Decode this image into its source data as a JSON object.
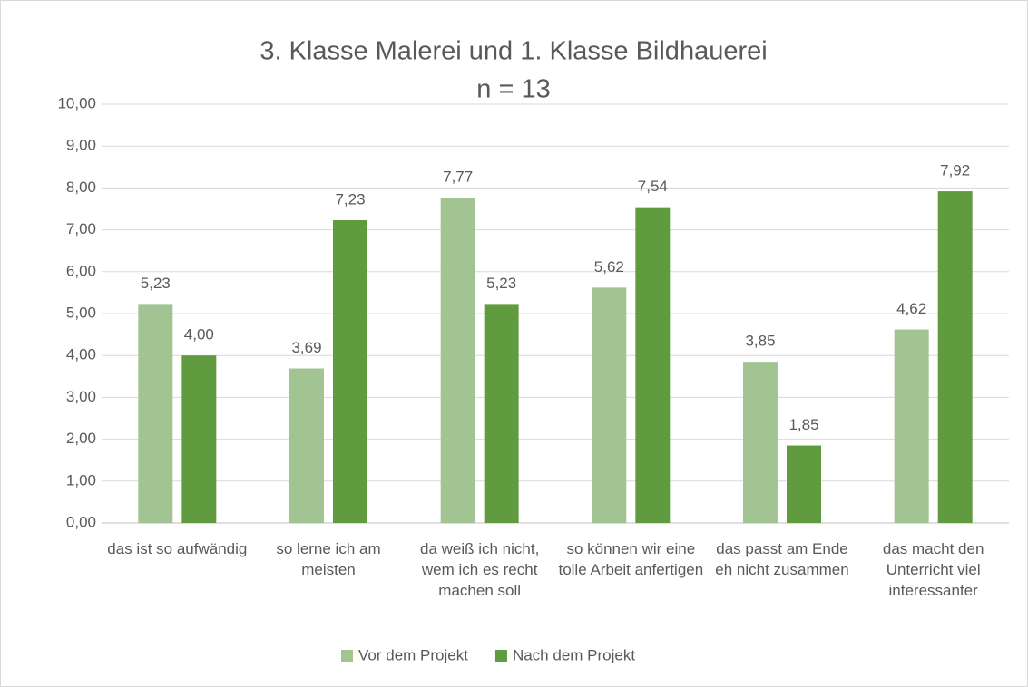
{
  "chart_data": {
    "type": "bar",
    "title": "3. Klasse Malerei und 1. Klasse Bildhauerei",
    "subtitle": "n = 13",
    "categories": [
      "das ist so aufwändig",
      "so lerne ich am meisten",
      "da weiß ich nicht, wem ich es recht machen soll",
      "so können wir eine tolle Arbeit anfertigen",
      "das passt am Ende eh nicht zusammen",
      "das macht den Unterricht viel interessanter"
    ],
    "series": [
      {
        "name": "Vor dem Projekt",
        "color": "#a2c493",
        "values": [
          5.23,
          3.69,
          7.77,
          5.62,
          3.85,
          4.62
        ],
        "value_labels": [
          "5,23",
          "3,69",
          "7,77",
          "5,62",
          "3,85",
          "4,62"
        ]
      },
      {
        "name": "Nach dem Projekt",
        "color": "#619b3f",
        "values": [
          4.0,
          7.23,
          5.23,
          7.54,
          1.85,
          7.92
        ],
        "value_labels": [
          "4,00",
          "7,23",
          "5,23",
          "7,54",
          "1,85",
          "7,92"
        ]
      }
    ],
    "ylim": [
      0,
      10
    ],
    "yticks": [
      {
        "value": 0,
        "label": "0,00"
      },
      {
        "value": 1,
        "label": "1,00"
      },
      {
        "value": 2,
        "label": "2,00"
      },
      {
        "value": 3,
        "label": "3,00"
      },
      {
        "value": 4,
        "label": "4,00"
      },
      {
        "value": 5,
        "label": "5,00"
      },
      {
        "value": 6,
        "label": "6,00"
      },
      {
        "value": 7,
        "label": "7,00"
      },
      {
        "value": 8,
        "label": "8,00"
      },
      {
        "value": 9,
        "label": "9,00"
      },
      {
        "value": 10,
        "label": "10,00"
      }
    ],
    "grid": true,
    "legend": "bottom"
  }
}
